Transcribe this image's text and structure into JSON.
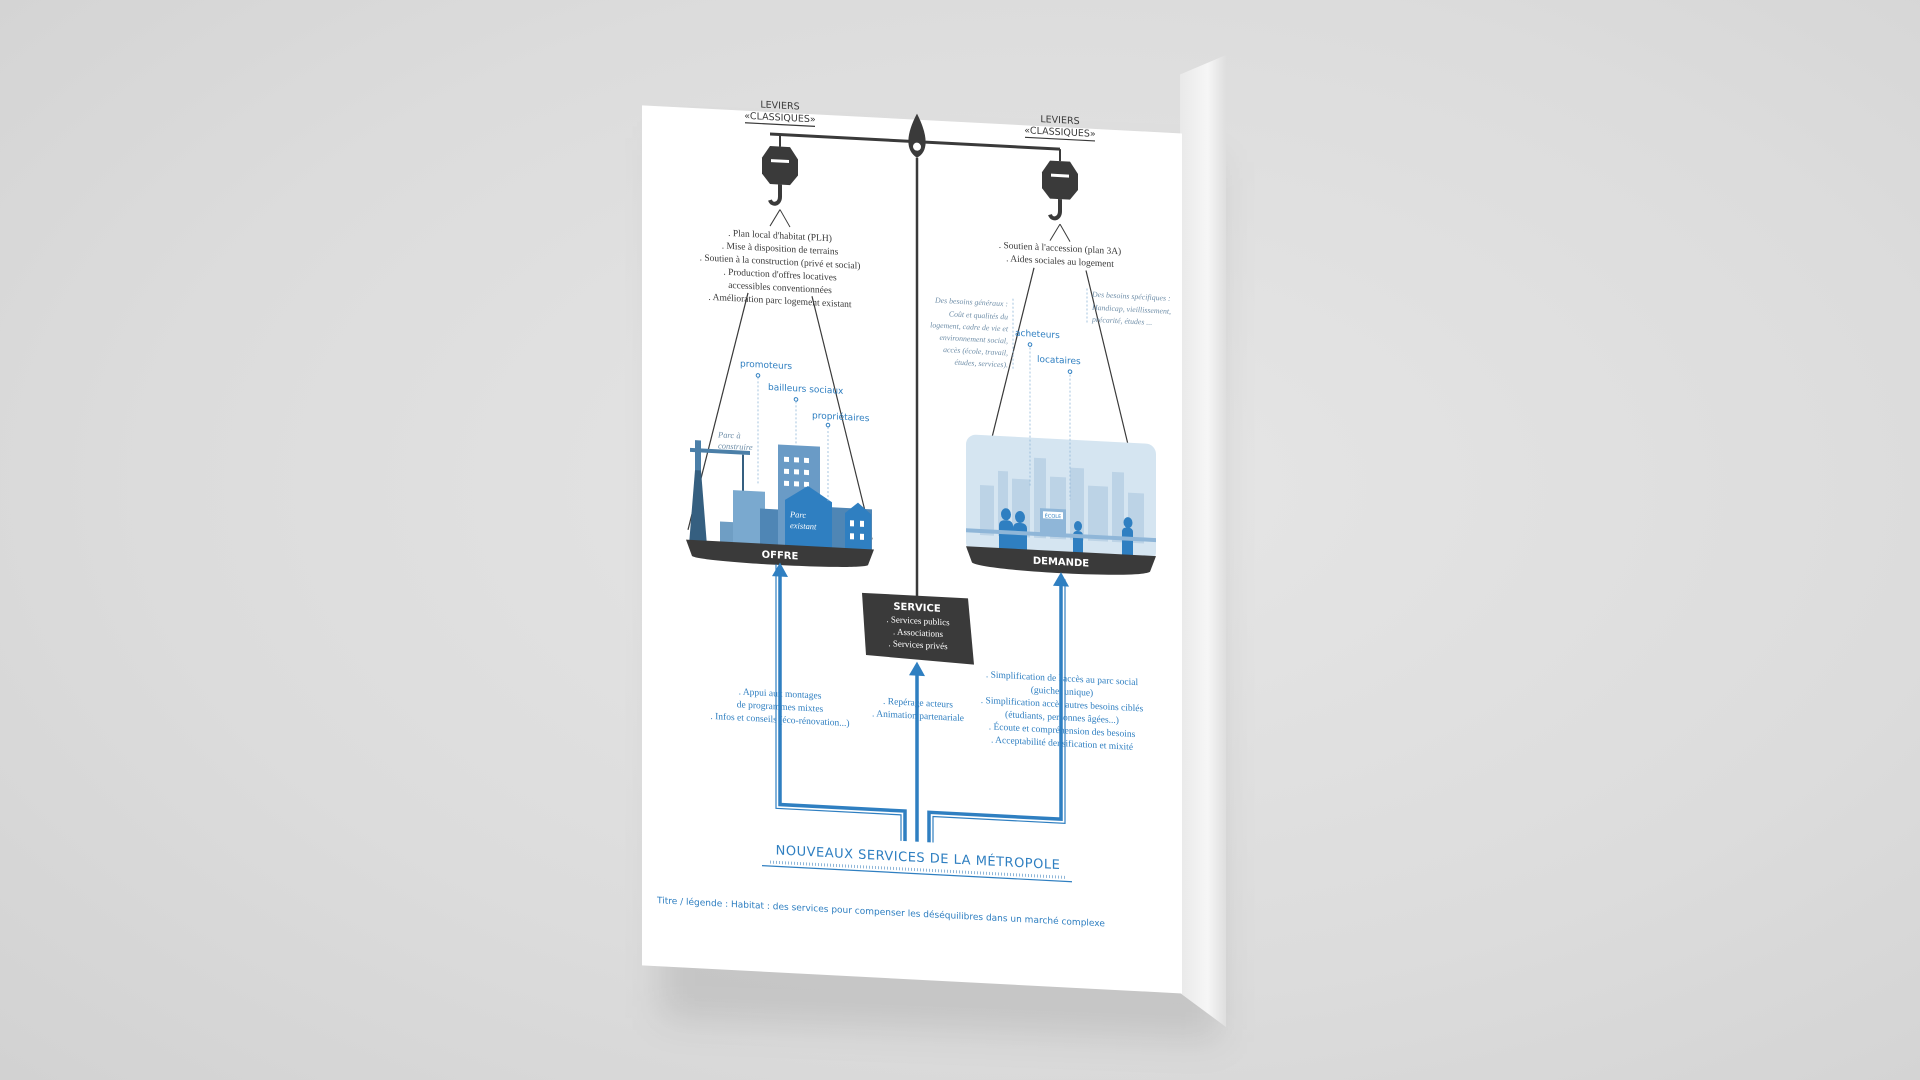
{
  "levers_left": {
    "line1": "LEVIERS",
    "line2": "«CLASSIQUES»"
  },
  "levers_right": {
    "line1": "LEVIERS",
    "line2": "«CLASSIQUES»"
  },
  "left_list": [
    ". Plan local d'habitat (PLH)",
    ". Mise à disposition de terrains",
    ". Soutien à la construction (privé et social)",
    ". Production d'offres locatives",
    "accessibles conventionnées",
    ". Amélioration parc logement existant"
  ],
  "right_list": [
    ". Soutien à l'accession (plan 3A)",
    ". Aides sociales au logement"
  ],
  "offre": {
    "label": "OFFRE",
    "actors": [
      "promoteurs",
      "bailleurs sociaux",
      "propriétaires"
    ],
    "parc_a_construire": [
      "Parc à",
      "construire"
    ],
    "parc_existant": [
      "Parc",
      "existant"
    ]
  },
  "demande": {
    "label": "DEMANDE",
    "actors": [
      "acheteurs",
      "locataires"
    ],
    "besoins_generaux": [
      "Des besoins généraux :",
      "Coût et qualités du",
      "logement, cadre de vie et",
      "environnement social,",
      "accès (école, travail,",
      "études, services)."
    ],
    "besoins_specifiques": [
      "Des besoins spécifiques :",
      "Handicap, vieillissement,",
      "précarité, études ..."
    ],
    "school_sign": "ÉCOLE"
  },
  "service": {
    "title": "SERVICE",
    "items": [
      ". Services publics",
      ". Associations",
      ". Services privés"
    ]
  },
  "bottom_left": [
    ". Appui aux montages",
    "de programmes mixtes",
    ". Infos et conseils (éco-rénovation...)"
  ],
  "bottom_center": [
    ". Repérage acteurs",
    ". Animation partenariale"
  ],
  "bottom_right": [
    ". Simplification de l'accès au parc social",
    "(guichet unique)",
    ". Simplification accès autres besoins ciblés",
    "(étudiants, personnes âgées...)",
    ". Écoute et compréhension des besoins",
    ". Acceptabilité densification et mixité"
  ],
  "footer_title": "NOUVEAUX SERVICES DE LA MÉTROPOLE",
  "caption": "Titre / légende : Habitat : des services pour compenser les déséquilibres dans un marché complexe",
  "colors": {
    "blue": "#2f7fc1",
    "dark": "#3a3a3a",
    "light_blue": "#8fb6d8",
    "pale_blue": "#cfe0ee"
  }
}
